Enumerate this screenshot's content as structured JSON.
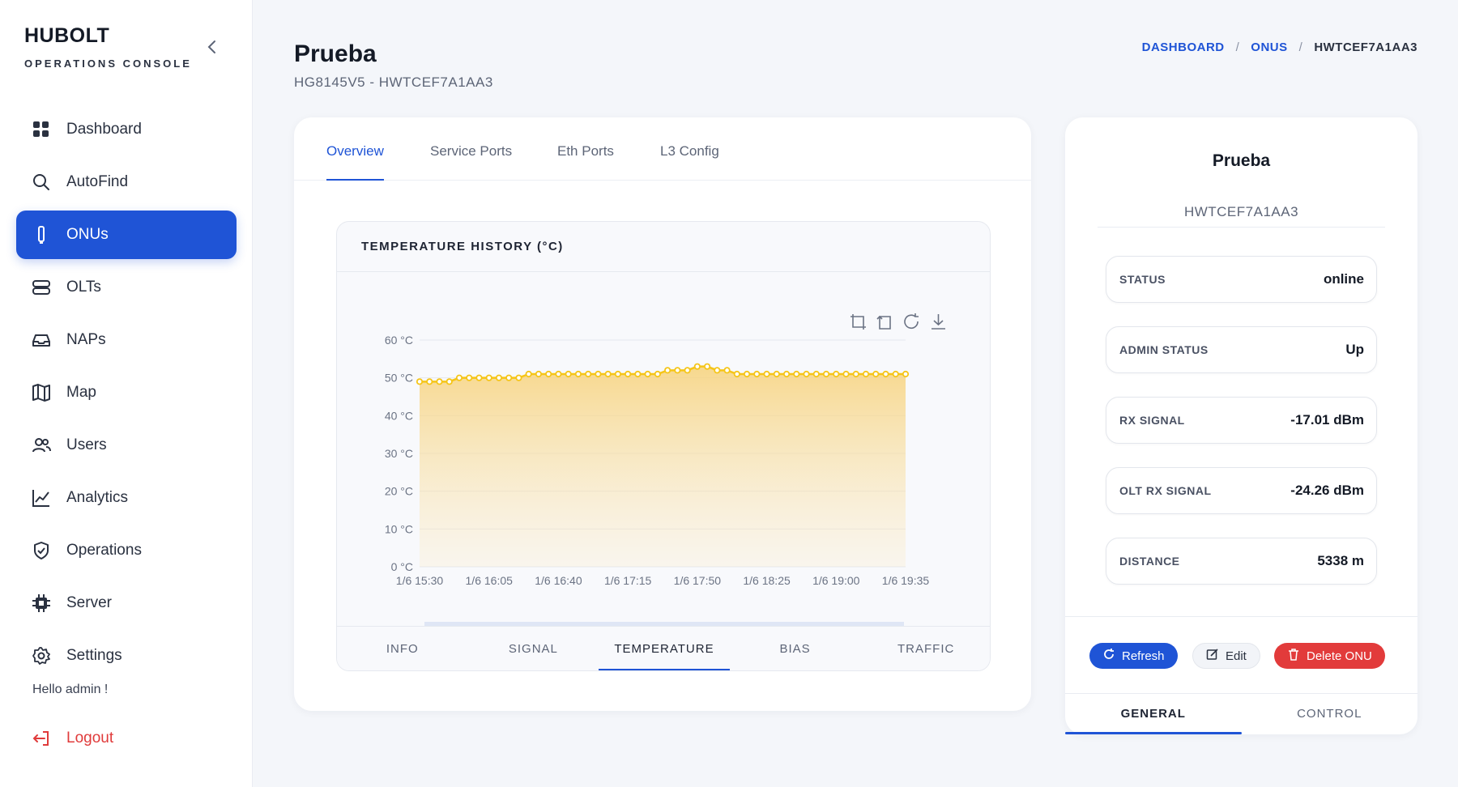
{
  "brand": {
    "name": "HUBOLT",
    "subtitle": "OPERATIONS CONSOLE"
  },
  "sidebar": {
    "items": [
      {
        "label": "Dashboard",
        "icon": "grid-icon"
      },
      {
        "label": "AutoFind",
        "icon": "search-icon"
      },
      {
        "label": "ONUs",
        "icon": "router-icon"
      },
      {
        "label": "OLTs",
        "icon": "server-stack-icon"
      },
      {
        "label": "NAPs",
        "icon": "inbox-icon"
      },
      {
        "label": "Map",
        "icon": "map-icon"
      },
      {
        "label": "Users",
        "icon": "users-icon"
      },
      {
        "label": "Analytics",
        "icon": "chart-line-icon"
      },
      {
        "label": "Operations",
        "icon": "shield-icon"
      },
      {
        "label": "Server",
        "icon": "cpu-icon"
      },
      {
        "label": "Settings",
        "icon": "gear-icon"
      }
    ],
    "active_index": 2,
    "greeting": "Hello admin !",
    "logout_label": "Logout"
  },
  "header": {
    "title": "Prueba",
    "subtitle": "HG8145V5 - HWTCEF7A1AA3",
    "breadcrumb": [
      "DASHBOARD",
      "ONUS",
      "HWTCEF7A1AA3"
    ]
  },
  "tabs": [
    "Overview",
    "Service Ports",
    "Eth Ports",
    "L3 Config"
  ],
  "chart_panel": {
    "title": "TEMPERATURE HISTORY (°C)",
    "sub_tabs": [
      "INFO",
      "SIGNAL",
      "TEMPERATURE",
      "BIAS",
      "TRAFFIC"
    ],
    "active_sub_tab": 2
  },
  "chart_data": {
    "type": "area",
    "title": "TEMPERATURE HISTORY (°C)",
    "x_tick_labels": [
      "1/6 15:30",
      "1/6 16:05",
      "1/6 16:40",
      "1/6 17:15",
      "1/6 17:50",
      "1/6 18:25",
      "1/6 19:00",
      "1/6 19:35"
    ],
    "y_tick_labels": [
      "0 °C",
      "10 °C",
      "20 °C",
      "30 °C",
      "40 °C",
      "50 °C",
      "60 °C"
    ],
    "ylim": [
      0,
      60
    ],
    "grid": true,
    "series": [
      {
        "values": [
          49,
          49,
          49,
          49,
          50,
          50,
          50,
          50,
          50,
          50,
          50,
          51,
          51,
          51,
          51,
          51,
          51,
          51,
          51,
          51,
          51,
          51,
          51,
          51,
          51,
          52,
          52,
          52,
          53,
          53,
          52,
          52,
          51,
          51,
          51,
          51,
          51,
          51,
          51,
          51,
          51,
          51,
          51,
          51,
          51,
          51,
          51,
          51,
          51,
          51
        ]
      }
    ],
    "colors": {
      "line": "#f5c518",
      "fill": "#f9d98a"
    }
  },
  "device": {
    "name": "Prueba",
    "serial": "HWTCEF7A1AA3",
    "stats": [
      {
        "label": "STATUS",
        "value": "online"
      },
      {
        "label": "ADMIN STATUS",
        "value": "Up"
      },
      {
        "label": "RX SIGNAL",
        "value": "-17.01 dBm"
      },
      {
        "label": "OLT RX SIGNAL",
        "value": "-24.26 dBm"
      },
      {
        "label": "DISTANCE",
        "value": "5338 m"
      }
    ],
    "actions": {
      "refresh": "Refresh",
      "edit": "Edit",
      "delete": "Delete ONU"
    },
    "tabs": [
      "GENERAL",
      "CONTROL"
    ]
  },
  "colors": {
    "accent": "#1f54d6",
    "danger": "#e23b3b"
  }
}
